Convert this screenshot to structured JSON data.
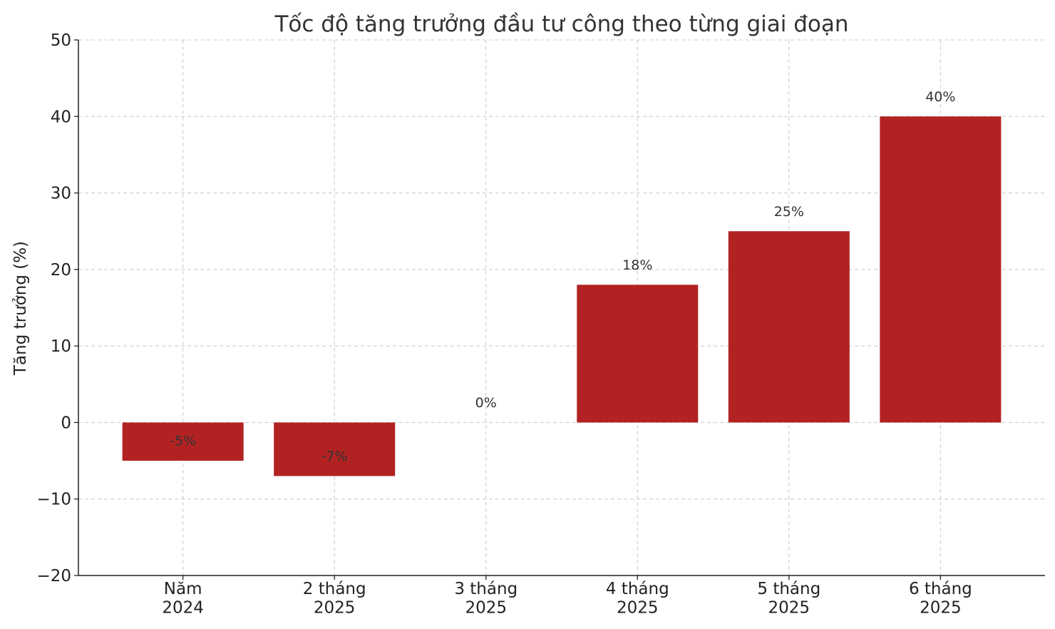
{
  "chart_data": {
    "type": "bar",
    "title": "Tốc độ tăng trưởng đầu tư công theo từng giai đoạn",
    "y_label": "Tăng trưởng (%)",
    "categories": [
      "Năm\n2024",
      "2 tháng\n2025",
      "3 tháng\n2025",
      "4 tháng\n2025",
      "5 tháng\n2025",
      "6 tháng\n2025"
    ],
    "values": [
      -5,
      -7,
      0,
      18,
      25,
      40
    ],
    "value_labels": [
      "-5%",
      "-7%",
      "0%",
      "18%",
      "25%",
      "40%"
    ],
    "color": "#b22222",
    "ylim": [
      -20,
      50
    ],
    "yticks": [
      {
        "value": -20,
        "label": "−20"
      },
      {
        "value": -10,
        "label": "−10"
      },
      0,
      10,
      20,
      30,
      40,
      50
    ],
    "grid": true
  }
}
